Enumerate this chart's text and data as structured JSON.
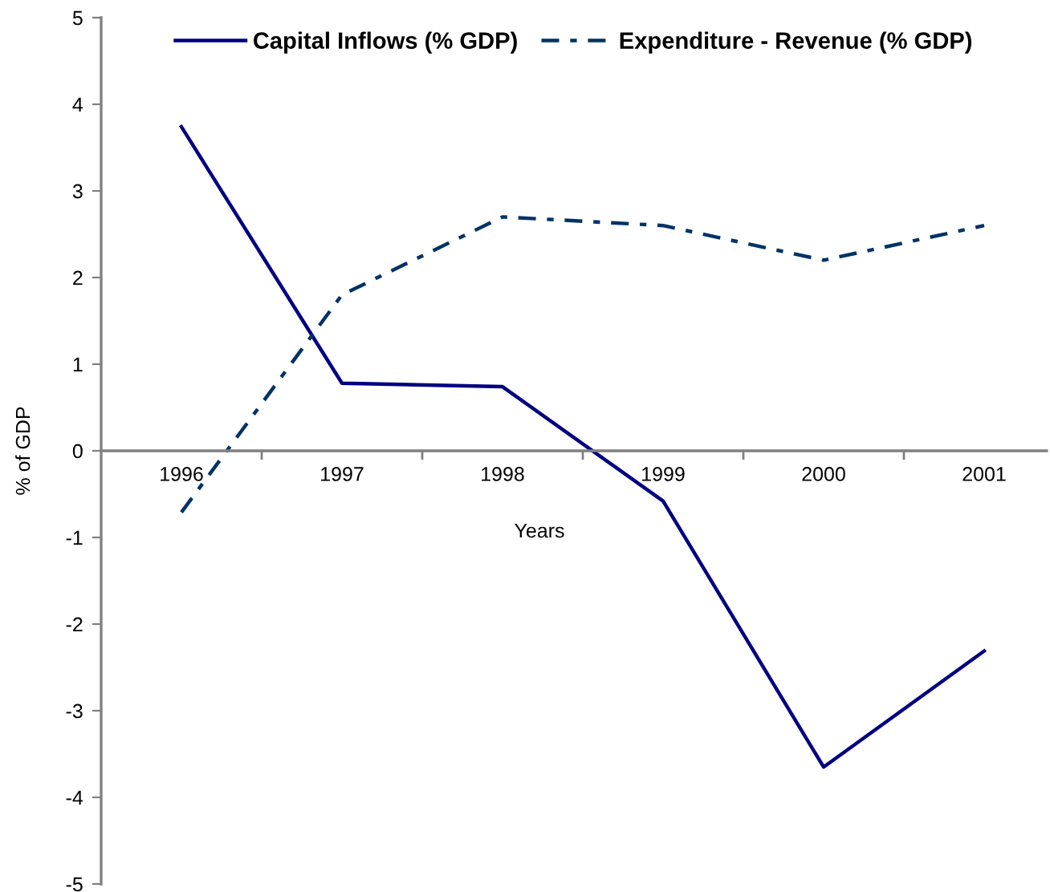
{
  "chart_data": {
    "type": "line",
    "xlabel": "Years",
    "ylabel": "% of GDP",
    "categories": [
      "1996",
      "1997",
      "1998",
      "1999",
      "2000",
      "2001"
    ],
    "series": [
      {
        "name": "Capital Inflows (% GDP)",
        "color": "#000080",
        "line_style": "solid",
        "values": [
          3.74,
          0.78,
          0.74,
          -0.58,
          -3.65,
          -2.31
        ]
      },
      {
        "name": "Expenditure - Revenue (% GDP)",
        "color": "#003366",
        "line_style": "dashdot",
        "values": [
          -0.71,
          1.8,
          2.7,
          2.6,
          2.2,
          2.6
        ]
      }
    ],
    "ylim": [
      -5,
      5
    ],
    "yticks": [
      -5,
      -4,
      -3,
      -2,
      -1,
      0,
      1,
      2,
      3,
      4,
      5
    ],
    "grid": false,
    "legend": "top"
  }
}
